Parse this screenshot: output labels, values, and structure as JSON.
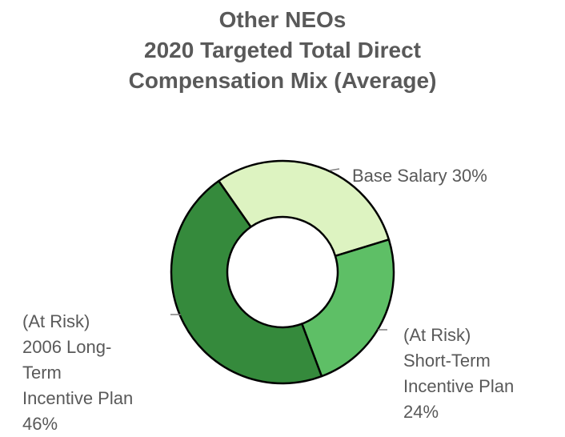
{
  "title": {
    "lines": [
      "Other NEOs",
      "2020 Targeted Total Direct",
      "Compensation Mix (Average)"
    ]
  },
  "colors": {
    "base_salary": "#DDF3C1",
    "short_term": "#5EBF66",
    "long_term": "#358A3C",
    "outline": "#000000",
    "text": "#595959"
  },
  "labels": {
    "base_salary": {
      "lines": [
        "Base Salary 30%"
      ]
    },
    "short_term": {
      "lines": [
        "(At Risk)",
        "Short-Term",
        "Incentive Plan",
        "24%"
      ]
    },
    "long_term": {
      "lines": [
        "(At Risk)",
        "2006 Long-",
        "Term",
        "Incentive Plan",
        "46%"
      ]
    }
  },
  "chart_data": {
    "type": "pie",
    "variant": "donut",
    "title": "Other NEOs 2020 Targeted Total Direct Compensation Mix (Average)",
    "categories": [
      "Base Salary",
      "(At Risk) Short-Term Incentive Plan",
      "(At Risk) 2006 Long-Term Incentive Plan"
    ],
    "values": [
      30,
      24,
      46
    ],
    "unit": "%",
    "colors": [
      "#DDF3C1",
      "#5EBF66",
      "#358A3C"
    ],
    "legend": "none (data labels with leader lines)"
  }
}
